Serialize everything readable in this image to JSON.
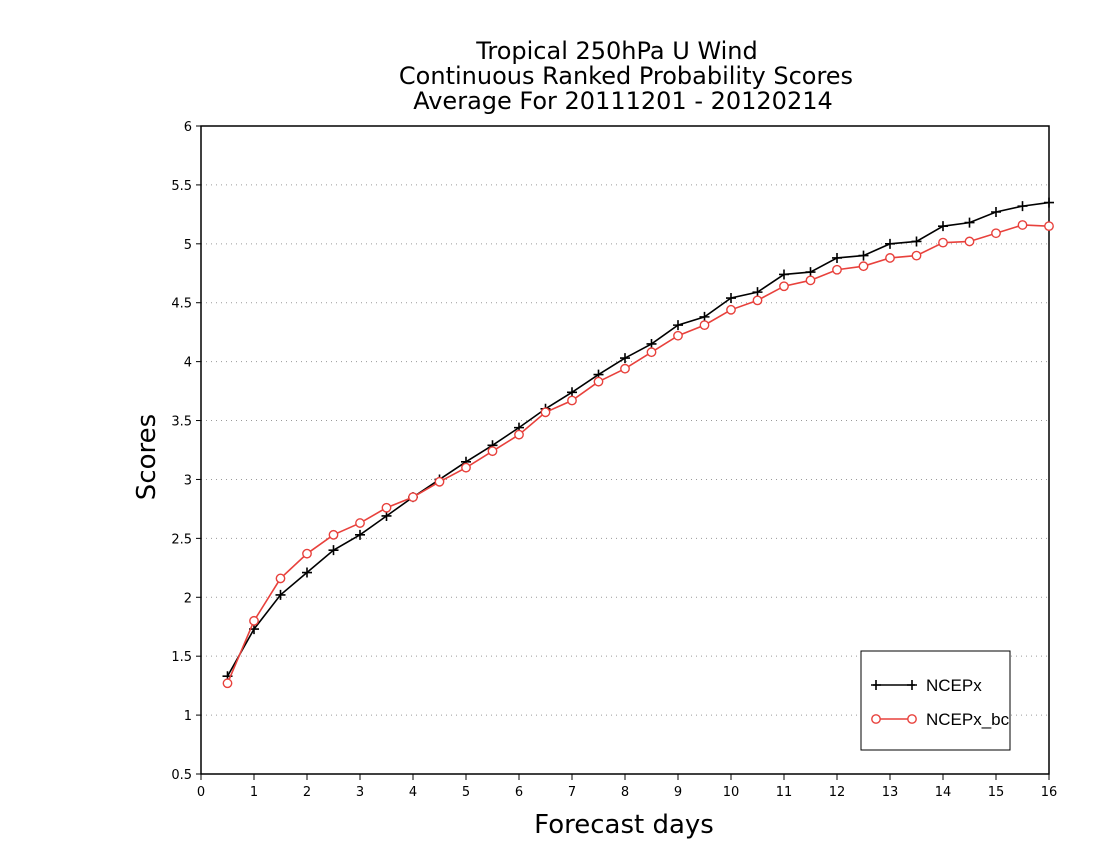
{
  "chart_data": {
    "type": "line",
    "title_lines": [
      "Tropical 250hPa U Wind",
      "Continuous Ranked Probability Scores",
      "Average For 20111201 - 20120214"
    ],
    "xlabel": "Forecast days",
    "ylabel": "Scores",
    "xlim": [
      0,
      16
    ],
    "ylim": [
      0.5,
      6
    ],
    "x_ticks": [
      "0",
      "1",
      "2",
      "3",
      "4",
      "5",
      "6",
      "7",
      "8",
      "9",
      "10",
      "11",
      "12",
      "13",
      "14",
      "15",
      "16"
    ],
    "y_ticks": [
      "0.5",
      "1",
      "1.5",
      "2",
      "2.5",
      "3",
      "3.5",
      "4",
      "4.5",
      "5",
      "5.5",
      "6"
    ],
    "grid": true,
    "legend_position": "bottom-right",
    "x": [
      0.5,
      1,
      1.5,
      2,
      2.5,
      3,
      3.5,
      4,
      4.5,
      5,
      5.5,
      6,
      6.5,
      7,
      7.5,
      8,
      8.5,
      9,
      9.5,
      10,
      10.5,
      11,
      11.5,
      12,
      12.5,
      13,
      13.5,
      14,
      14.5,
      15,
      15.5,
      16
    ],
    "series": [
      {
        "name": "NCEPx",
        "color": "#000000",
        "marker": "plus",
        "values": [
          1.33,
          1.73,
          2.02,
          2.21,
          2.4,
          2.53,
          2.69,
          2.85,
          3.0,
          3.15,
          3.29,
          3.44,
          3.6,
          3.74,
          3.89,
          4.03,
          4.15,
          4.31,
          4.38,
          4.54,
          4.59,
          4.74,
          4.76,
          4.88,
          4.9,
          5.0,
          5.02,
          5.15,
          5.18,
          5.27,
          5.32,
          5.35
        ]
      },
      {
        "name": "NCEPx_bc",
        "color": "#e8413c",
        "marker": "circle",
        "values": [
          1.27,
          1.8,
          2.16,
          2.37,
          2.53,
          2.63,
          2.76,
          2.85,
          2.98,
          3.1,
          3.24,
          3.38,
          3.57,
          3.67,
          3.83,
          3.94,
          4.08,
          4.22,
          4.31,
          4.44,
          4.52,
          4.64,
          4.69,
          4.78,
          4.81,
          4.88,
          4.9,
          5.01,
          5.02,
          5.09,
          5.16,
          5.15
        ]
      }
    ]
  }
}
